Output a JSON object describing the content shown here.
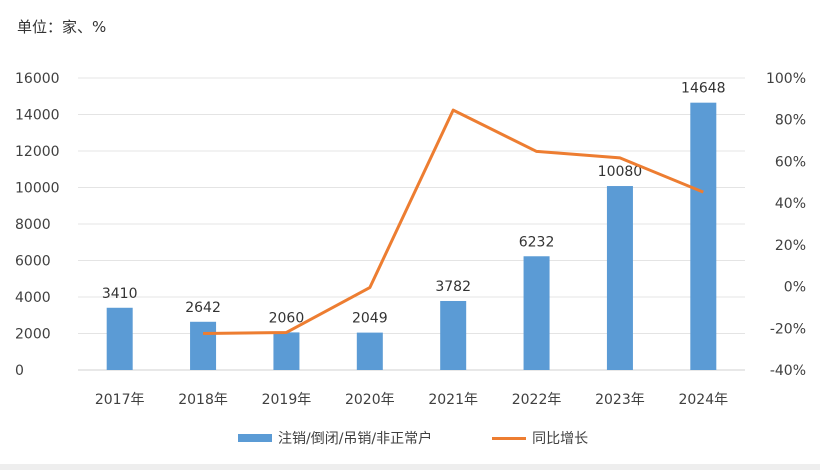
{
  "unit_label": "单位：家、%",
  "chart_data": {
    "type": "bar+line",
    "categories": [
      "2017年",
      "2018年",
      "2019年",
      "2020年",
      "2021年",
      "2022年",
      "2023年",
      "2024年"
    ],
    "series": [
      {
        "name": "注销/倒闭/吊销/非正常户",
        "type": "bar",
        "axis": "left",
        "color": "#5b9bd5",
        "values": [
          3410,
          2642,
          2060,
          2049,
          3782,
          6232,
          10080,
          14648
        ]
      },
      {
        "name": "同比增长",
        "type": "line",
        "axis": "right",
        "color": "#ed7d31",
        "values": [
          null,
          -22.5,
          -22.0,
          -0.5,
          84.6,
          64.8,
          61.7,
          45.3
        ]
      }
    ],
    "y_left": {
      "range": [
        0,
        16000
      ],
      "ticks": [
        "0",
        "2000",
        "4000",
        "6000",
        "8000",
        "10000",
        "12000",
        "14000",
        "16000"
      ]
    },
    "y_right": {
      "range": [
        -40,
        100
      ],
      "ticks": [
        "-40%",
        "-20%",
        "0%",
        "20%",
        "40%",
        "60%",
        "80%",
        "100%"
      ]
    },
    "grid": true,
    "legend_position": "bottom"
  }
}
